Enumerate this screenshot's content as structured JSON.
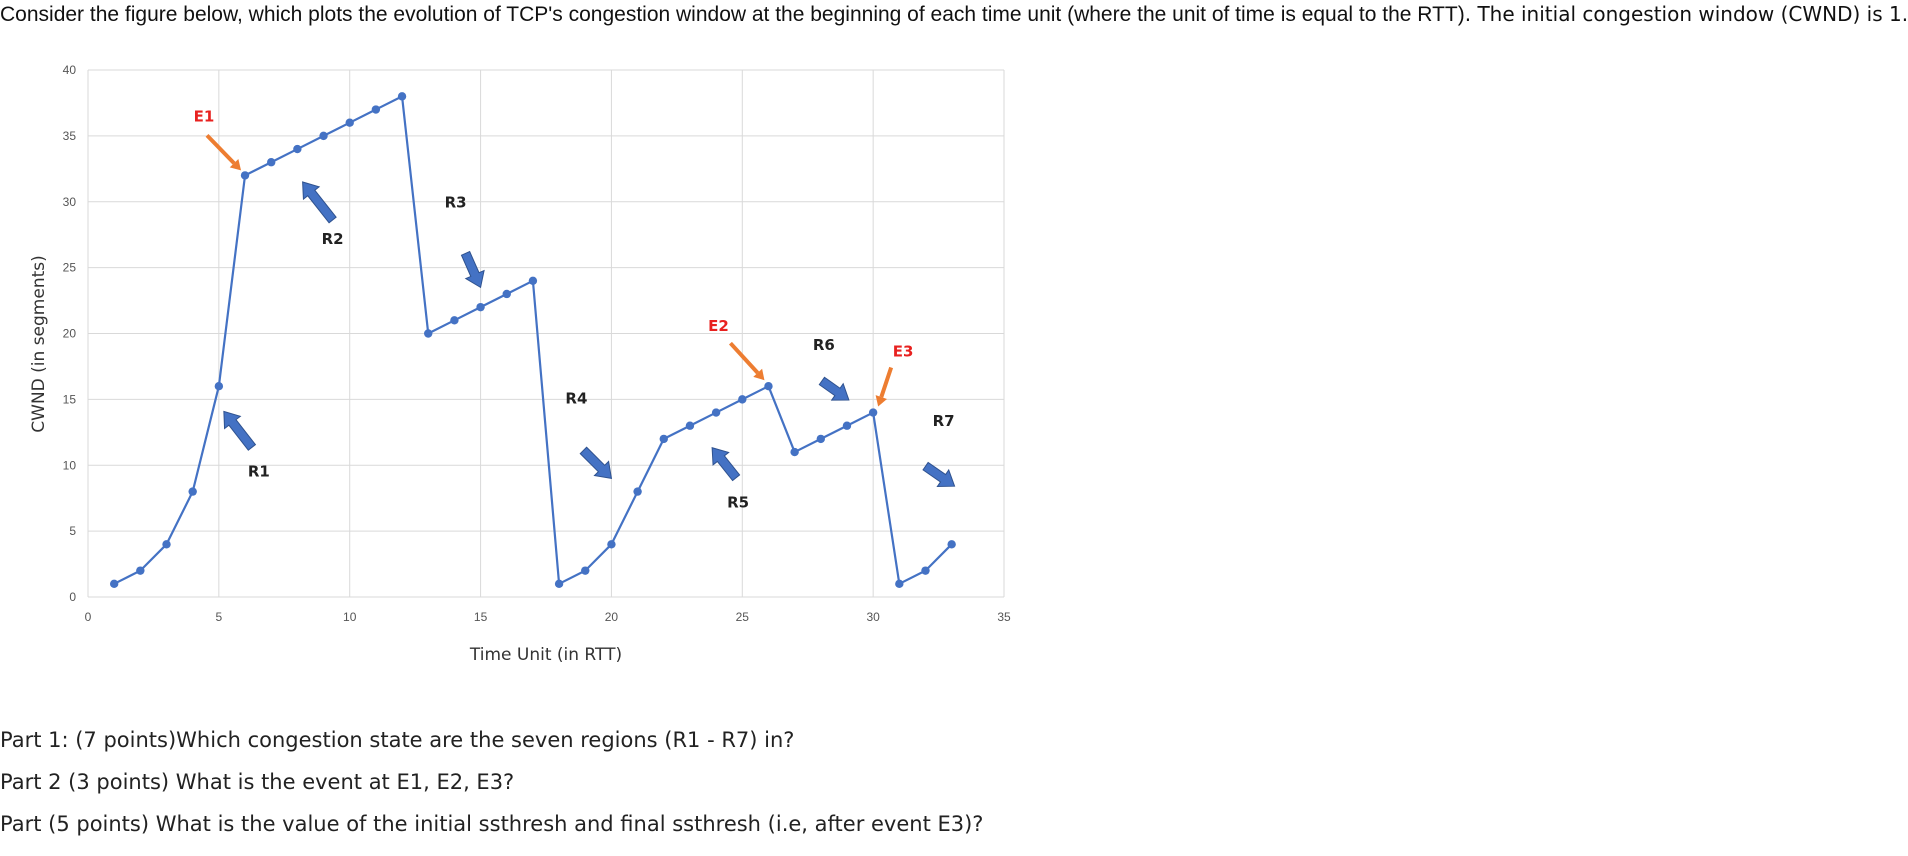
{
  "intro": {
    "part1": "Consider the figure below, which plots the evolution of TCP's congestion window at the beginning of each time unit (where the unit of time is equal to the RTT)",
    "part2": ". The initial congestion window (CWND) is 1."
  },
  "chart_data": {
    "type": "line",
    "title": "",
    "xlabel": "Time Unit (in RTT)",
    "ylabel": "CWND (in segments)",
    "xlim": [
      0,
      35
    ],
    "ylim": [
      0,
      40
    ],
    "x_ticks": [
      0,
      5,
      10,
      15,
      20,
      25,
      30,
      35
    ],
    "y_ticks": [
      0,
      5,
      10,
      15,
      20,
      25,
      30,
      35,
      40
    ],
    "grid": true,
    "series": [
      {
        "color": "#4472c4",
        "x": [
          1,
          2,
          3,
          4,
          5,
          6,
          7,
          8,
          9,
          10,
          11,
          12,
          13,
          14,
          15,
          16,
          17,
          18,
          19,
          20,
          21,
          22,
          23,
          24,
          25,
          26,
          27,
          28,
          29,
          30,
          31,
          32,
          33
        ],
        "y": [
          1,
          2,
          4,
          8,
          16,
          32,
          33,
          34,
          35,
          36,
          37,
          38,
          20,
          21,
          22,
          23,
          24,
          1,
          2,
          4,
          8,
          12,
          13,
          14,
          15,
          16,
          11,
          12,
          13,
          14,
          1,
          2,
          4
        ]
      }
    ],
    "annotations": [
      {
        "label": "E1",
        "color": "#e8211f",
        "at": [
          6,
          32
        ]
      },
      {
        "label": "E2",
        "color": "#e8211f",
        "at": [
          26,
          16
        ]
      },
      {
        "label": "E3",
        "color": "#e8211f",
        "at": [
          30,
          14
        ]
      },
      {
        "label": "R1",
        "color": "#222222",
        "at": [
          5,
          15
        ]
      },
      {
        "label": "R2",
        "color": "#222222",
        "at": [
          8.2,
          31.5
        ]
      },
      {
        "label": "R3",
        "color": "#222222",
        "at": [
          15,
          23.5
        ]
      },
      {
        "label": "R4",
        "color": "#222222",
        "at": [
          20,
          9
        ]
      },
      {
        "label": "R5",
        "color": "#222222",
        "at": [
          24,
          13
        ]
      },
      {
        "label": "R6",
        "color": "#222222",
        "at": [
          28.5,
          14.5
        ]
      },
      {
        "label": "R7",
        "color": "#222222",
        "at": [
          32.5,
          7.5
        ]
      }
    ]
  },
  "colors": {
    "event_arrow": "#ed7d31",
    "region_arrow": "#4472c4"
  },
  "questions": [
    "Part 1: (7 points)Which congestion state are the seven regions (R1 - R7) in?",
    "Part 2 (3 points) What is the event at  E1, E2, E3?",
    "Part (5 points) What is the value of the initial ssthresh  and final ssthresh (i.e, after event E3)?"
  ]
}
